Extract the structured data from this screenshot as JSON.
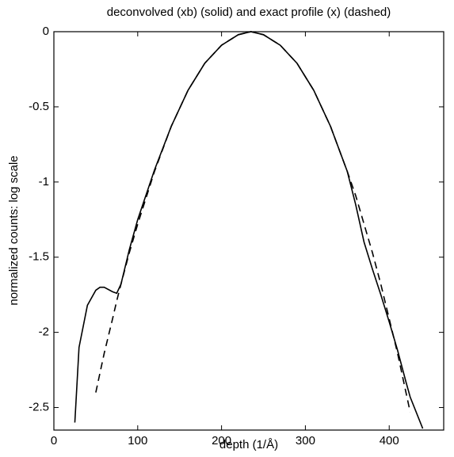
{
  "chart_data": {
    "type": "line",
    "title": "deconvolved (xb) (solid) and exact profile (x) (dashed)",
    "x_label": "depth (1/Å)",
    "y_label": "normalized counts: log scale",
    "x": [
      25,
      30,
      40,
      50,
      55,
      60,
      70,
      75,
      80,
      90,
      100,
      120,
      140,
      160,
      180,
      200,
      220,
      235,
      250,
      270,
      290,
      310,
      330,
      350,
      360,
      370,
      380,
      390,
      400,
      410,
      420,
      425,
      440
    ],
    "series": [
      {
        "name": "xb",
        "color": "#000000",
        "linestyle": "solid",
        "values": [
          -2.6,
          -2.1,
          -1.82,
          -1.72,
          -1.7,
          -1.7,
          -1.73,
          -1.74,
          -1.68,
          -1.45,
          -1.25,
          -0.92,
          -0.63,
          -0.39,
          -0.21,
          -0.09,
          -0.02,
          0,
          -0.02,
          -0.09,
          -0.21,
          -0.39,
          -0.63,
          -0.93,
          -1.15,
          -1.4,
          -1.58,
          -1.75,
          -1.93,
          -2.12,
          -2.33,
          -2.43,
          -2.64
        ]
      },
      {
        "name": "x",
        "color": "#000000",
        "linestyle": "dashed",
        "values": [
          null,
          null,
          null,
          -2.4,
          -2.27,
          -2.14,
          -1.91,
          -1.79,
          -1.68,
          -1.47,
          -1.28,
          -0.93,
          -0.63,
          -0.39,
          -0.21,
          -0.09,
          -0.02,
          0,
          -0.02,
          -0.09,
          -0.21,
          -0.39,
          -0.63,
          -0.93,
          -1.09,
          -1.28,
          -1.47,
          -1.68,
          -1.91,
          -2.14,
          -2.4,
          -2.53,
          null
        ]
      }
    ],
    "xlim": [
      0,
      465
    ],
    "xticks": [
      0,
      100,
      200,
      300,
      400
    ],
    "ylim": [
      -2.65,
      0
    ],
    "yticks": [
      0,
      -0.5,
      -1,
      -1.5,
      -2,
      -2.5
    ],
    "grid": false
  }
}
